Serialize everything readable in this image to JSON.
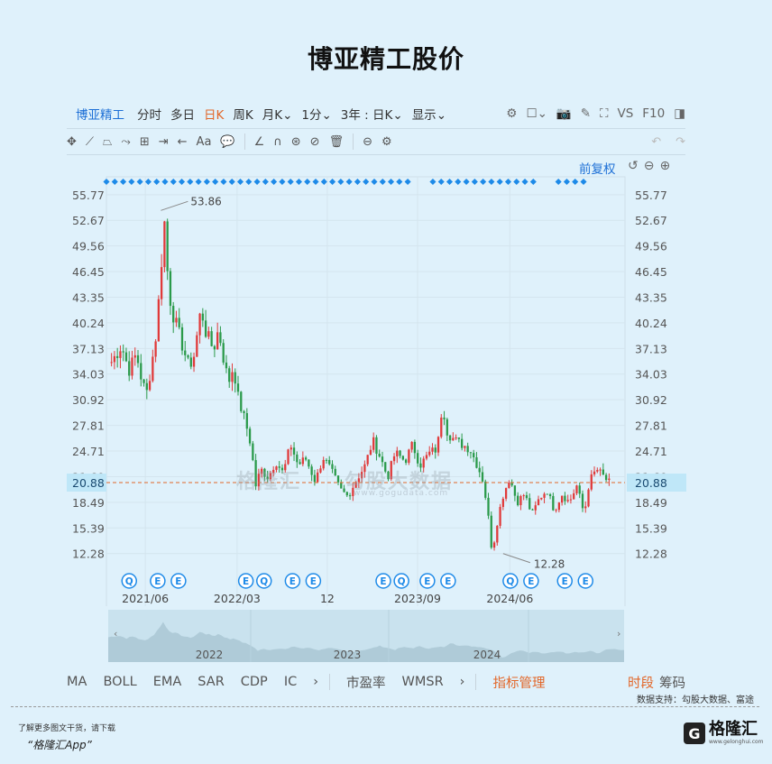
{
  "title": "博亚精工股价",
  "toolbar": {
    "stock_name": "博亚精工",
    "items": [
      "分时",
      "多日",
      "日K",
      "周K",
      "月K",
      "1分"
    ],
    "active": "日K",
    "range": "3年 : 日K",
    "display": "显示",
    "vs": "VS",
    "f10": "F10"
  },
  "tools2": [
    "✥",
    "⟋",
    "⏢",
    "⤳",
    "⊞",
    "⇥",
    "←",
    "Aa",
    "💬",
    "∠",
    "∩",
    "⊛",
    "⊘",
    "🗑",
    "⊖",
    "⚙"
  ],
  "chart_top": {
    "fqk": "前复权"
  },
  "chart_data": {
    "type": "candlestick",
    "y_ticks": [
      "55.77",
      "52.67",
      "49.56",
      "46.45",
      "43.35",
      "40.24",
      "37.13",
      "34.03",
      "30.92",
      "27.81",
      "24.71",
      "21.60",
      "18.49",
      "15.39",
      "12.28"
    ],
    "ylim": [
      10.5,
      57.5
    ],
    "x_ticks": [
      {
        "label": "2021/06",
        "pos": 0.075
      },
      {
        "label": "2022/03",
        "pos": 0.252
      },
      {
        "label": "12",
        "pos": 0.426
      },
      {
        "label": "2023/09",
        "pos": 0.6
      },
      {
        "label": "2024/06",
        "pos": 0.778
      }
    ],
    "current_price": "20.88",
    "current_value": 20.88,
    "max_label": "53.86",
    "max_value": 53.86,
    "min_label": "12.28",
    "min_value": 12.28,
    "key_points": [
      [
        0,
        35.5
      ],
      [
        0.02,
        37.5
      ],
      [
        0.035,
        34.5
      ],
      [
        0.05,
        36.5
      ],
      [
        0.06,
        33.5
      ],
      [
        0.07,
        31.5
      ],
      [
        0.08,
        35
      ],
      [
        0.09,
        39
      ],
      [
        0.1,
        47
      ],
      [
        0.105,
        53.86
      ],
      [
        0.115,
        44
      ],
      [
        0.125,
        41
      ],
      [
        0.14,
        38
      ],
      [
        0.155,
        35
      ],
      [
        0.165,
        36
      ],
      [
        0.18,
        42
      ],
      [
        0.19,
        39
      ],
      [
        0.205,
        37
      ],
      [
        0.215,
        39.5
      ],
      [
        0.225,
        36
      ],
      [
        0.235,
        33
      ],
      [
        0.245,
        35
      ],
      [
        0.255,
        31
      ],
      [
        0.27,
        28
      ],
      [
        0.28,
        25.5
      ],
      [
        0.29,
        20.5
      ],
      [
        0.3,
        22.5
      ],
      [
        0.315,
        21.5
      ],
      [
        0.33,
        23.5
      ],
      [
        0.345,
        22
      ],
      [
        0.36,
        25.5
      ],
      [
        0.375,
        23
      ],
      [
        0.39,
        23.8
      ],
      [
        0.41,
        21
      ],
      [
        0.425,
        24
      ],
      [
        0.44,
        22.5
      ],
      [
        0.46,
        20
      ],
      [
        0.475,
        19.2
      ],
      [
        0.49,
        21
      ],
      [
        0.51,
        23
      ],
      [
        0.525,
        26
      ],
      [
        0.54,
        24
      ],
      [
        0.555,
        21.5
      ],
      [
        0.57,
        24.5
      ],
      [
        0.59,
        23.5
      ],
      [
        0.605,
        25.5
      ],
      [
        0.62,
        23
      ],
      [
        0.64,
        24.5
      ],
      [
        0.655,
        25
      ],
      [
        0.665,
        30.5
      ],
      [
        0.675,
        27
      ],
      [
        0.69,
        26
      ],
      [
        0.705,
        25.5
      ],
      [
        0.72,
        25
      ],
      [
        0.735,
        23
      ],
      [
        0.745,
        21.5
      ],
      [
        0.755,
        18
      ],
      [
        0.765,
        12.28
      ],
      [
        0.775,
        16
      ],
      [
        0.785,
        19
      ],
      [
        0.8,
        21.5
      ],
      [
        0.815,
        18.5
      ],
      [
        0.83,
        19.5
      ],
      [
        0.845,
        17
      ],
      [
        0.86,
        19
      ],
      [
        0.875,
        20
      ],
      [
        0.89,
        17.5
      ],
      [
        0.905,
        19.5
      ],
      [
        0.92,
        18.5
      ],
      [
        0.935,
        20.5
      ],
      [
        0.95,
        17
      ],
      [
        0.96,
        21
      ],
      [
        0.975,
        22.5
      ],
      [
        0.99,
        21.5
      ],
      [
        1.0,
        20.88
      ]
    ],
    "events_left": [
      "Q",
      "E",
      "E"
    ],
    "events_mid": [
      "E",
      "Q",
      "E",
      "E"
    ],
    "events_right": [
      "E",
      "Q",
      "E",
      "E",
      "Q",
      "E",
      "E"
    ]
  },
  "navigator": {
    "years": [
      "2022",
      "2023",
      "2024"
    ]
  },
  "indicators": {
    "items": [
      "MA",
      "BOLL",
      "EMA",
      "SAR",
      "CDP",
      "IC"
    ],
    "pe": "市盈率",
    "wmsr": "WMSR",
    "manage": "指标管理",
    "period": "时段",
    "chips": "筹码"
  },
  "source": "数据支持：勾股大数据、富途",
  "watermark": {
    "brand": "格隆汇",
    "name": "勾股大数据",
    "url": "www.gogudata.com"
  },
  "promo": {
    "line1": "了解更多图文干货，请下载",
    "line2": "“格隆汇App”"
  },
  "logo": {
    "mark": "G",
    "cn": "格隆汇",
    "en": "www.gelonghui.com"
  },
  "colors": {
    "up": "#e03a3a",
    "down": "#2a9a4a",
    "accent": "#1d6fd6",
    "orange": "#e2672a"
  }
}
